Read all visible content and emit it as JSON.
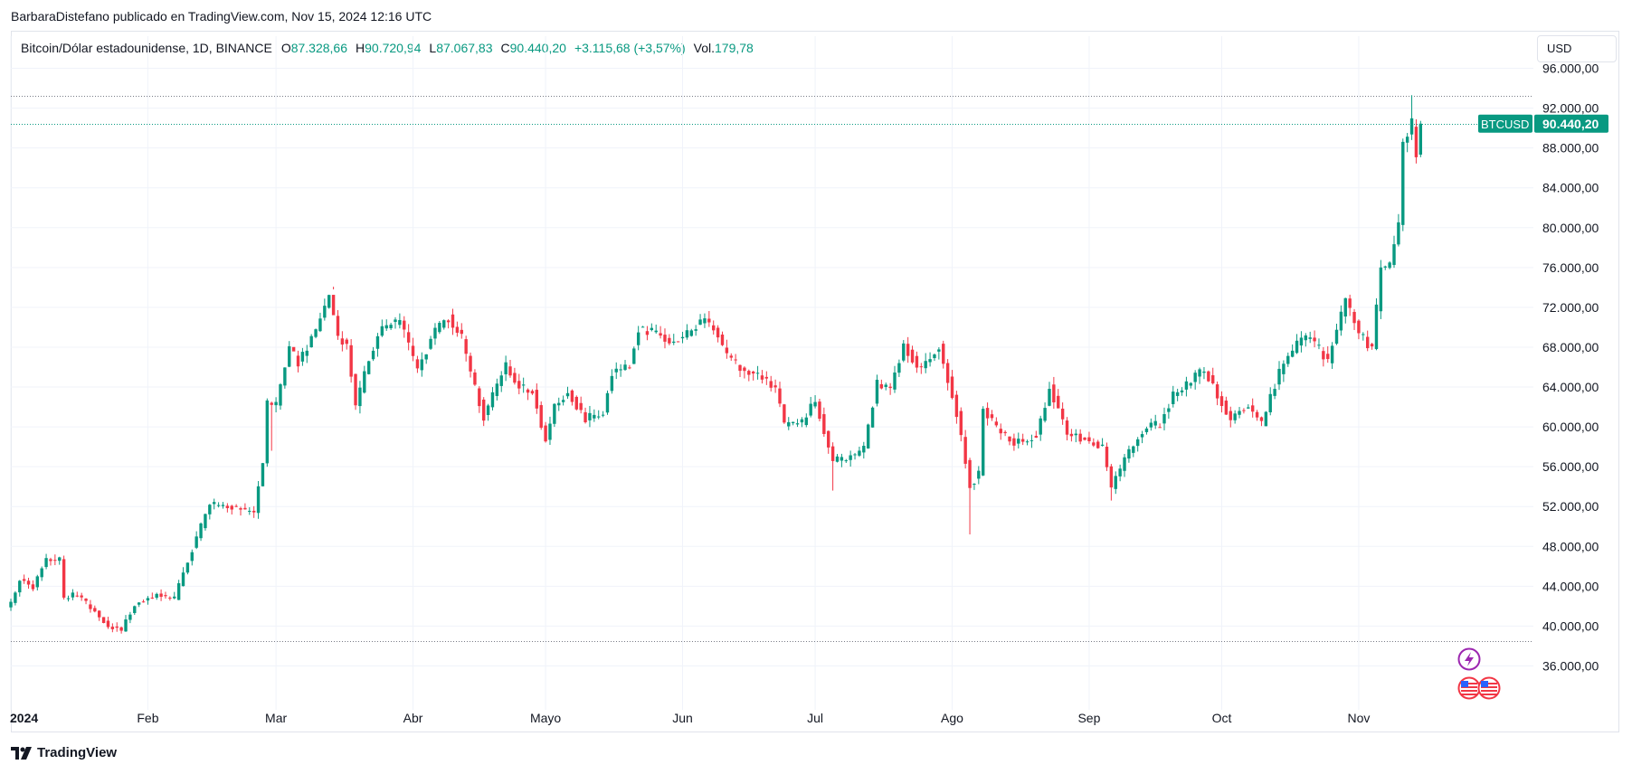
{
  "byline": "BarbaraDistefano publicado en TradingView.com, Nov 15, 2024 12:16 UTC",
  "legend": {
    "symbol": "Bitcoin/Dólar estadounidense, 1D, BINANCE",
    "open_label": "O",
    "open": "87.328,66",
    "high_label": "H",
    "high": "90.720,94",
    "low_label": "L",
    "low": "87.067,83",
    "close_label": "C",
    "close": "90.440,20",
    "change": "+3.115,68 (+3,57%)",
    "volume_label": "Vol.",
    "volume": "179,78"
  },
  "currency_button": "USD",
  "brand": "TradingView",
  "price_tag": {
    "symbol": "BTCUSD",
    "price": "90.440,20",
    "value": 90440.2
  },
  "colors": {
    "up": "#089981",
    "down": "#f23645",
    "grid": "#f0f3fa",
    "text": "#131722",
    "tag": "#089981"
  },
  "chart_data": {
    "type": "candlestick",
    "x_labels": [
      "2024",
      "Feb",
      "Mar",
      "Abr",
      "Mayo",
      "Jun",
      "Jul",
      "Ago",
      "Sep",
      "Oct",
      "Nov"
    ],
    "y_ticks": [
      "36.000,00",
      "40.000,00",
      "44.000,00",
      "48.000,00",
      "52.000,00",
      "56.000,00",
      "60.000,00",
      "64.000,00",
      "68.000,00",
      "72.000,00",
      "76.000,00",
      "80.000,00",
      "84.000,00",
      "88.000,00",
      "92.000,00",
      "96.000,00"
    ],
    "y_tick_values": [
      36000,
      40000,
      44000,
      48000,
      52000,
      56000,
      60000,
      64000,
      68000,
      72000,
      76000,
      80000,
      84000,
      88000,
      92000,
      96000
    ],
    "ylim": [
      32500,
      96500
    ],
    "reference_lines": [
      93200,
      90440.2,
      38500
    ],
    "close_path": [
      [
        "2024-01-01",
        42300
      ],
      [
        "2024-01-03",
        44800
      ],
      [
        "2024-01-06",
        43800
      ],
      [
        "2024-01-09",
        46800
      ],
      [
        "2024-01-12",
        46600
      ],
      [
        "2024-01-13",
        42800
      ],
      [
        "2024-01-16",
        43200
      ],
      [
        "2024-01-20",
        41400
      ],
      [
        "2024-01-23",
        40000
      ],
      [
        "2024-01-26",
        39600
      ],
      [
        "2024-01-29",
        42200
      ],
      [
        "2024-02-03",
        43200
      ],
      [
        "2024-02-07",
        42700
      ],
      [
        "2024-02-09",
        45400
      ],
      [
        "2024-02-12",
        48900
      ],
      [
        "2024-02-15",
        52200
      ],
      [
        "2024-02-20",
        52000
      ],
      [
        "2024-02-25",
        51400
      ],
      [
        "2024-02-27",
        56500
      ],
      [
        "2024-02-28",
        62400
      ],
      [
        "2024-03-01",
        62200
      ],
      [
        "2024-03-04",
        68100
      ],
      [
        "2024-03-06",
        66300
      ],
      [
        "2024-03-10",
        69700
      ],
      [
        "2024-03-13",
        73000
      ],
      [
        "2024-03-15",
        69000
      ],
      [
        "2024-03-17",
        68400
      ],
      [
        "2024-03-19",
        61900
      ],
      [
        "2024-03-22",
        66900
      ],
      [
        "2024-03-25",
        70000
      ],
      [
        "2024-03-29",
        70600
      ],
      [
        "2024-04-02",
        65800
      ],
      [
        "2024-04-06",
        69700
      ],
      [
        "2024-04-09",
        71000
      ],
      [
        "2024-04-12",
        68900
      ],
      [
        "2024-04-14",
        65500
      ],
      [
        "2024-04-17",
        61000
      ],
      [
        "2024-04-22",
        66100
      ],
      [
        "2024-04-25",
        64000
      ],
      [
        "2024-04-28",
        63700
      ],
      [
        "2024-05-01",
        58500
      ],
      [
        "2024-05-03",
        62200
      ],
      [
        "2024-05-06",
        63500
      ],
      [
        "2024-05-10",
        60800
      ],
      [
        "2024-05-14",
        61500
      ],
      [
        "2024-05-16",
        65500
      ],
      [
        "2024-05-20",
        66200
      ],
      [
        "2024-05-22",
        69900
      ],
      [
        "2024-05-26",
        69400
      ],
      [
        "2024-05-30",
        68400
      ],
      [
        "2024-06-03",
        69700
      ],
      [
        "2024-06-06",
        71000
      ],
      [
        "2024-06-09",
        69300
      ],
      [
        "2024-06-11",
        67000
      ],
      [
        "2024-06-14",
        66000
      ],
      [
        "2024-06-18",
        65000
      ],
      [
        "2024-06-22",
        64100
      ],
      [
        "2024-06-24",
        60200
      ],
      [
        "2024-06-28",
        60400
      ],
      [
        "2024-07-01",
        62700
      ],
      [
        "2024-07-05",
        56600
      ],
      [
        "2024-07-08",
        56700
      ],
      [
        "2024-07-12",
        57900
      ],
      [
        "2024-07-15",
        64300
      ],
      [
        "2024-07-18",
        64000
      ],
      [
        "2024-07-21",
        68100
      ],
      [
        "2024-07-25",
        65700
      ],
      [
        "2024-07-29",
        68200
      ],
      [
        "2024-08-02",
        61400
      ],
      [
        "2024-08-05",
        54000
      ],
      [
        "2024-08-07",
        55300
      ],
      [
        "2024-08-08",
        61700
      ],
      [
        "2024-08-12",
        59400
      ],
      [
        "2024-08-15",
        58500
      ],
      [
        "2024-08-20",
        59000
      ],
      [
        "2024-08-23",
        64000
      ],
      [
        "2024-08-27",
        59500
      ],
      [
        "2024-08-30",
        58900
      ],
      [
        "2024-09-04",
        58000
      ],
      [
        "2024-09-06",
        53900
      ],
      [
        "2024-09-10",
        57600
      ],
      [
        "2024-09-14",
        60000
      ],
      [
        "2024-09-17",
        60300
      ],
      [
        "2024-09-20",
        63200
      ],
      [
        "2024-09-27",
        65800
      ],
      [
        "2024-09-30",
        63300
      ],
      [
        "2024-10-03",
        60700
      ],
      [
        "2024-10-07",
        62300
      ],
      [
        "2024-10-10",
        60300
      ],
      [
        "2024-10-14",
        65500
      ],
      [
        "2024-10-18",
        68400
      ],
      [
        "2024-10-21",
        69000
      ],
      [
        "2024-10-25",
        66600
      ],
      [
        "2024-10-29",
        72700
      ],
      [
        "2024-11-01",
        69500
      ],
      [
        "2024-11-04",
        67800
      ],
      [
        "2024-11-06",
        75800
      ],
      [
        "2024-11-08",
        76500
      ],
      [
        "2024-11-10",
        80400
      ],
      [
        "2024-11-11",
        88700
      ],
      [
        "2024-11-13",
        90400
      ],
      [
        "2024-11-14",
        87300
      ],
      [
        "2024-11-15",
        90440.2
      ]
    ],
    "last_candle": {
      "date": "2024-11-15",
      "open": 87328.66,
      "high": 90720.94,
      "low": 87067.83,
      "close": 90440.2
    }
  }
}
